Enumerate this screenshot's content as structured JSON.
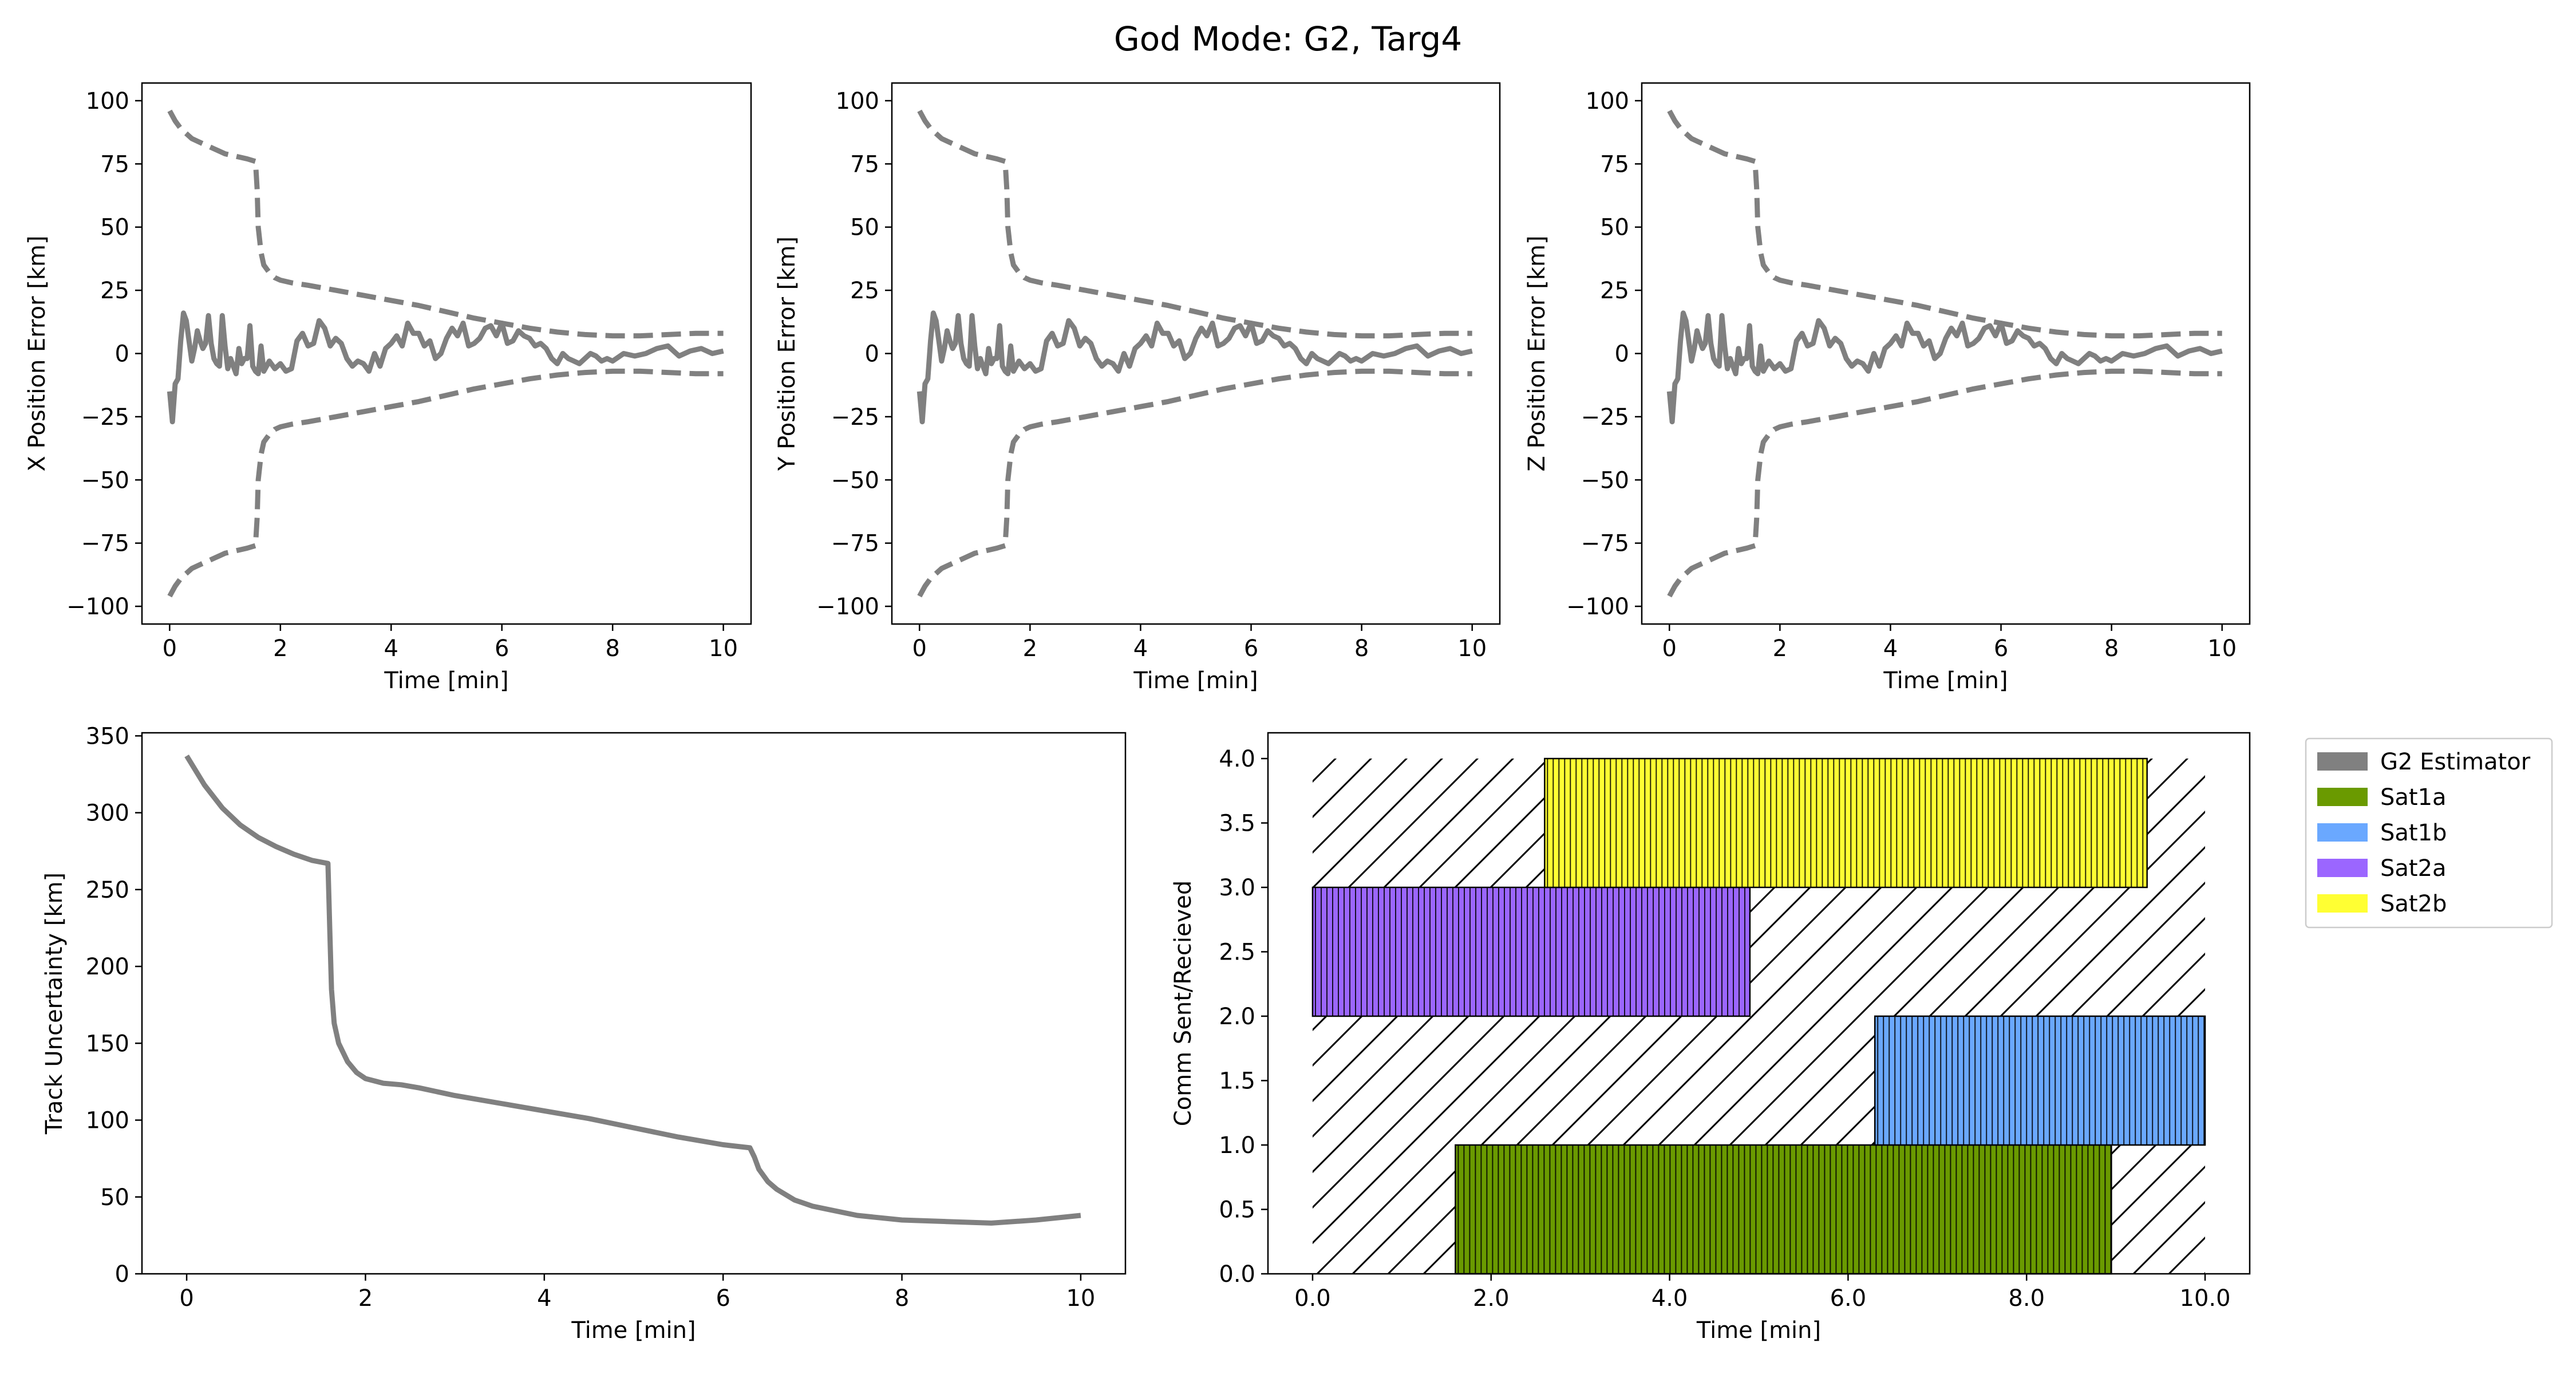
{
  "title": "God Mode: G2, Targ4",
  "colors": {
    "error": "#808080",
    "bound": "#808080",
    "axes": "#000000",
    "background": "#ffffff"
  },
  "chart_data": [
    {
      "id": "x_err",
      "type": "line",
      "xlabel": "Time [min]",
      "ylabel": "X Position Error [km]",
      "xlim": [
        -0.5,
        10.5
      ],
      "ylim": [
        -107,
        107
      ],
      "xticks": [
        0,
        2,
        4,
        6,
        8,
        10
      ],
      "yticks": [
        -100,
        -75,
        -50,
        -25,
        0,
        25,
        50,
        75,
        100
      ],
      "grid": false,
      "series": [
        {
          "role": "error",
          "style": "solid",
          "x": [
            0,
            0.05,
            0.1,
            0.15,
            0.2,
            0.25,
            0.3,
            0.35,
            0.4,
            0.45,
            0.5,
            0.55,
            0.6,
            0.65,
            0.7,
            0.75,
            0.8,
            0.85,
            0.9,
            0.95,
            1.0,
            1.05,
            1.1,
            1.15,
            1.2,
            1.25,
            1.3,
            1.35,
            1.4,
            1.45,
            1.5,
            1.55,
            1.6,
            1.65,
            1.7,
            1.8,
            1.9,
            2.0,
            2.1,
            2.2,
            2.3,
            2.4,
            2.5,
            2.6,
            2.7,
            2.8,
            2.9,
            3.0,
            3.1,
            3.2,
            3.3,
            3.4,
            3.5,
            3.6,
            3.7,
            3.8,
            3.9,
            4.0,
            4.1,
            4.2,
            4.3,
            4.4,
            4.5,
            4.6,
            4.7,
            4.8,
            4.9,
            5.0,
            5.1,
            5.2,
            5.3,
            5.4,
            5.5,
            5.6,
            5.7,
            5.8,
            5.9,
            6.0,
            6.1,
            6.2,
            6.3,
            6.4,
            6.5,
            6.6,
            6.7,
            6.8,
            6.9,
            7.0,
            7.1,
            7.2,
            7.3,
            7.4,
            7.5,
            7.6,
            7.7,
            7.8,
            7.9,
            8.0,
            8.2,
            8.4,
            8.6,
            8.8,
            9.0,
            9.2,
            9.4,
            9.6,
            9.8,
            10.0
          ],
          "y": [
            -15,
            -27,
            -12,
            -10,
            5,
            16,
            13,
            5,
            -3,
            2,
            9,
            5,
            2,
            4,
            15,
            4,
            -2,
            -4,
            -5,
            15,
            3,
            -6,
            -2,
            -5,
            -8,
            2,
            -4,
            -2,
            -2,
            11,
            -5,
            -7,
            -8,
            3,
            -7,
            -3,
            -6,
            -4,
            -7,
            -6,
            5,
            8,
            3,
            4,
            13,
            10,
            3,
            6,
            4,
            -2,
            -5,
            -3,
            -4,
            -7,
            0,
            -5,
            2,
            4,
            7,
            3,
            12,
            8,
            8,
            3,
            5,
            -2,
            0,
            6,
            10,
            7,
            12,
            3,
            4,
            6,
            10,
            11,
            7,
            12,
            4,
            5,
            9,
            7,
            6,
            3,
            4,
            2,
            -2,
            -4,
            0,
            -2,
            -3,
            -4,
            -2,
            0,
            -1,
            -3,
            -2,
            -3,
            0,
            -1,
            0,
            2,
            3,
            -1,
            1,
            2,
            0,
            1
          ]
        },
        {
          "role": "bound",
          "style": "dashed",
          "x": [
            0,
            0.1,
            0.2,
            0.3,
            0.4,
            0.5,
            0.6,
            0.8,
            1.0,
            1.2,
            1.4,
            1.55,
            1.58,
            1.6,
            1.65,
            1.7,
            1.8,
            1.9,
            2.0,
            2.2,
            2.5,
            3.0,
            3.5,
            4.0,
            4.5,
            5.0,
            5.5,
            6.0,
            6.5,
            7.0,
            7.5,
            8.0,
            8.5,
            9.0,
            9.5,
            10.0
          ],
          "y": [
            96,
            92,
            89,
            87,
            85,
            84,
            83,
            81,
            79,
            78,
            77,
            76,
            65,
            50,
            40,
            35,
            32,
            30,
            29,
            28,
            27,
            25,
            23,
            21,
            19,
            16.5,
            14,
            12,
            10,
            8.5,
            7.5,
            7,
            7,
            7.5,
            8,
            8
          ]
        },
        {
          "role": "bound",
          "style": "dashed",
          "x": [
            0,
            0.1,
            0.2,
            0.3,
            0.4,
            0.5,
            0.6,
            0.8,
            1.0,
            1.2,
            1.4,
            1.55,
            1.58,
            1.6,
            1.65,
            1.7,
            1.8,
            1.9,
            2.0,
            2.2,
            2.5,
            3.0,
            3.5,
            4.0,
            4.5,
            5.0,
            5.5,
            6.0,
            6.5,
            7.0,
            7.5,
            8.0,
            8.5,
            9.0,
            9.5,
            10.0
          ],
          "y": [
            -96,
            -92,
            -89,
            -87,
            -85,
            -84,
            -83,
            -81,
            -79,
            -78,
            -77,
            -76,
            -65,
            -50,
            -40,
            -35,
            -32,
            -30,
            -29,
            -28,
            -27,
            -25,
            -23,
            -21,
            -19,
            -16.5,
            -14,
            -12,
            -10,
            -8.5,
            -7.5,
            -7,
            -7,
            -7.5,
            -8,
            -8
          ]
        }
      ]
    },
    {
      "id": "y_err",
      "type": "line",
      "xlabel": "Time [min]",
      "ylabel": "Y Position Error [km]",
      "xlim": [
        -0.5,
        10.5
      ],
      "ylim": [
        -107,
        107
      ],
      "xticks": [
        0,
        2,
        4,
        6,
        8,
        10
      ],
      "yticks": [
        -100,
        -75,
        -50,
        -25,
        0,
        25,
        50,
        75,
        100
      ],
      "grid": false,
      "series_ref": "x_err"
    },
    {
      "id": "z_err",
      "type": "line",
      "xlabel": "Time [min]",
      "ylabel": "Z Position Error [km]",
      "xlim": [
        -0.5,
        10.5
      ],
      "ylim": [
        -107,
        107
      ],
      "xticks": [
        0,
        2,
        4,
        6,
        8,
        10
      ],
      "yticks": [
        -100,
        -75,
        -50,
        -25,
        0,
        25,
        50,
        75,
        100
      ],
      "grid": false,
      "series_ref": "x_err"
    },
    {
      "id": "track",
      "type": "line",
      "xlabel": "Time [min]",
      "ylabel": "Track Uncertainty [km]",
      "xlim": [
        -0.5,
        10.5
      ],
      "ylim": [
        0,
        352
      ],
      "xticks": [
        0,
        2,
        4,
        6,
        8,
        10
      ],
      "yticks": [
        0,
        50,
        100,
        150,
        200,
        250,
        300,
        350
      ],
      "grid": false,
      "series": [
        {
          "role": "error",
          "style": "solid",
          "x": [
            0,
            0.2,
            0.4,
            0.6,
            0.8,
            1.0,
            1.2,
            1.4,
            1.58,
            1.6,
            1.62,
            1.65,
            1.7,
            1.8,
            1.9,
            2.0,
            2.2,
            2.4,
            2.6,
            3.0,
            3.5,
            4.0,
            4.5,
            5.0,
            5.5,
            6.0,
            6.3,
            6.35,
            6.4,
            6.5,
            6.6,
            6.8,
            7.0,
            7.5,
            8.0,
            8.5,
            9.0,
            9.5,
            10.0
          ],
          "y": [
            337,
            318,
            303,
            292,
            284,
            278,
            273,
            269,
            267,
            225,
            185,
            163,
            150,
            138,
            131,
            127,
            124,
            123,
            121,
            116,
            111,
            106,
            101,
            95,
            89,
            84,
            82,
            76,
            68,
            60,
            55,
            48,
            44,
            38,
            35,
            34,
            33,
            35,
            38
          ]
        }
      ]
    },
    {
      "id": "comm",
      "type": "bar",
      "xlabel": "Time [min]",
      "ylabel": "Comm Sent/Recieved",
      "xlim": [
        -0.5,
        10.5
      ],
      "ylim": [
        0,
        4.2
      ],
      "xticks": [
        0,
        2,
        4,
        6,
        8,
        10
      ],
      "yticks": [
        0.0,
        0.5,
        1.0,
        1.5,
        2.0,
        2.5,
        3.0,
        3.5,
        4.0
      ],
      "grid": false,
      "legend_position": "outside-right",
      "legend": [
        {
          "name": "G2 Estimator",
          "color": "#808080"
        },
        {
          "name": "Sat1a",
          "color": "#6a9a00"
        },
        {
          "name": "Sat1b",
          "color": "#6aa8ff"
        },
        {
          "name": "Sat2a",
          "color": "#9b66ff"
        },
        {
          "name": "Sat2b",
          "color": "#ffff33"
        }
      ],
      "spans": [
        {
          "name": "G2 Estimator",
          "start": 0,
          "end": 10,
          "y0": 0,
          "y1": 4,
          "fill": "hatch"
        },
        {
          "name": "Sat1a",
          "start": 1.6,
          "end": 8.95,
          "y0": 0,
          "y1": 1,
          "fill": "#6a9a00"
        },
        {
          "name": "Sat1b",
          "start": 6.3,
          "end": 10.0,
          "y0": 1,
          "y1": 2,
          "fill": "#6aa8ff"
        },
        {
          "name": "Sat2a",
          "start": 0.0,
          "end": 4.9,
          "y0": 2,
          "y1": 3,
          "fill": "#9b66ff"
        },
        {
          "name": "Sat2b",
          "start": 2.6,
          "end": 9.35,
          "y0": 3,
          "y1": 4,
          "fill": "#ffff33"
        }
      ]
    }
  ]
}
